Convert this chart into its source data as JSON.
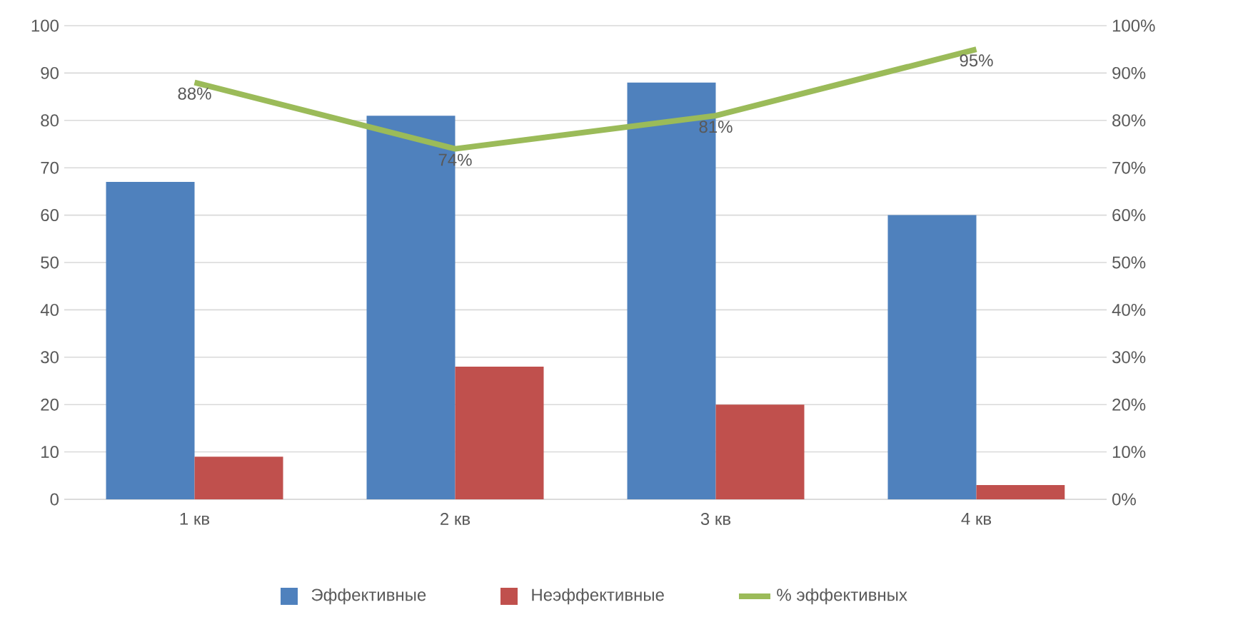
{
  "chart_data": {
    "type": "bar",
    "categories": [
      "1 кв",
      "2 кв",
      "3 кв",
      "4 кв"
    ],
    "series": [
      {
        "name": "Эффективные",
        "color": "#4f81bd",
        "values": [
          67,
          81,
          88,
          60
        ]
      },
      {
        "name": "Неэффективные",
        "color": "#c0504d",
        "values": [
          9,
          28,
          20,
          3
        ]
      },
      {
        "name": "% эффективных",
        "color": "#9bbb59",
        "type": "line",
        "axis": "y2",
        "values": [
          88,
          74,
          81,
          95
        ],
        "value_labels": [
          "88%",
          "74%",
          "81%",
          "95%"
        ]
      }
    ],
    "ylim": [
      0,
      100
    ],
    "yticks": [
      0,
      10,
      20,
      30,
      40,
      50,
      60,
      70,
      80,
      90,
      100
    ],
    "y2lim": [
      0,
      100
    ],
    "y2ticks": [
      {
        "value": 0,
        "label": "0%"
      },
      {
        "value": 10,
        "label": "10%"
      },
      {
        "value": 20,
        "label": "20%"
      },
      {
        "value": 30,
        "label": "30%"
      },
      {
        "value": 40,
        "label": "40%"
      },
      {
        "value": 50,
        "label": "50%"
      },
      {
        "value": 60,
        "label": "60%"
      },
      {
        "value": 70,
        "label": "70%"
      },
      {
        "value": 80,
        "label": "80%"
      },
      {
        "value": 90,
        "label": "90%"
      },
      {
        "value": 100,
        "label": "100%"
      }
    ],
    "grid": "y",
    "legend": "bottom",
    "marker": "none"
  }
}
